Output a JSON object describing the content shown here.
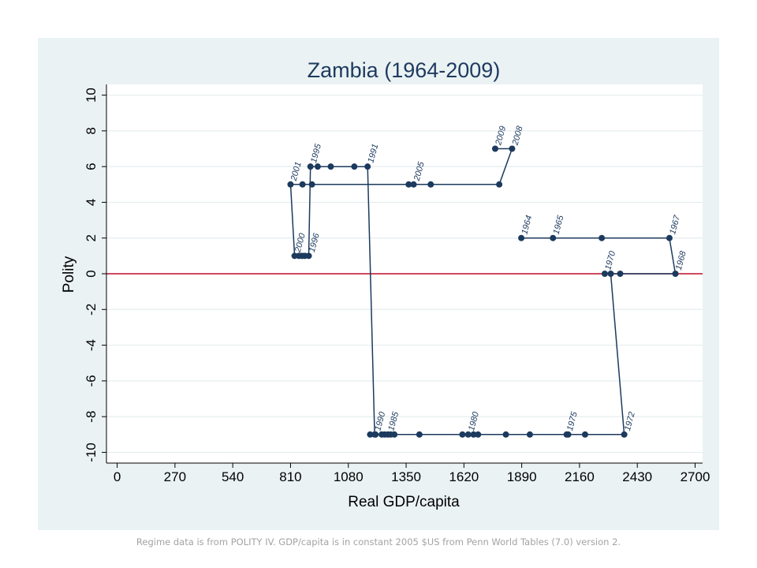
{
  "chart_data": {
    "type": "line",
    "title": "Zambia (1964-2009)",
    "xlabel": "Real GDP/capita",
    "ylabel": "Polity",
    "xlim": [
      -50,
      2735
    ],
    "ylim": [
      -10.6,
      10.6
    ],
    "x_ticks": [
      0,
      270,
      540,
      810,
      1080,
      1350,
      1620,
      1890,
      2160,
      2430,
      2700
    ],
    "y_ticks": [
      -10,
      -8,
      -6,
      -4,
      -2,
      0,
      2,
      4,
      6,
      8,
      10
    ],
    "y_tick_labels": [
      "-10",
      "-8",
      "-6",
      "-4",
      "-2",
      "0",
      "2",
      "4",
      "6",
      "8",
      "10"
    ],
    "reference_line": {
      "y": 0,
      "color": "#c0102a"
    },
    "series_color": "#1c3a5e",
    "series": [
      {
        "name": "Zambia",
        "points": [
          {
            "year": 1964,
            "x": 1888,
            "y": 2,
            "label": "1964"
          },
          {
            "year": 1965,
            "x": 2036,
            "y": 2,
            "label": "1965"
          },
          {
            "year": 1966,
            "x": 2264,
            "y": 2,
            "label": ""
          },
          {
            "year": 1967,
            "x": 2580,
            "y": 2,
            "label": "1967"
          },
          {
            "year": 1968,
            "x": 2608,
            "y": 0,
            "label": "1968"
          },
          {
            "year": 1969,
            "x": 2350,
            "y": 0,
            "label": ""
          },
          {
            "year": 1970,
            "x": 2278,
            "y": 0,
            "label": "1970"
          },
          {
            "year": 1971,
            "x": 2306,
            "y": 0,
            "label": ""
          },
          {
            "year": 1972,
            "x": 2369,
            "y": -9,
            "label": "1972"
          },
          {
            "year": 1973,
            "x": 2186,
            "y": -9,
            "label": ""
          },
          {
            "year": 1974,
            "x": 2107,
            "y": -9,
            "label": ""
          },
          {
            "year": 1975,
            "x": 2100,
            "y": -9,
            "label": "1975"
          },
          {
            "year": 1976,
            "x": 1928,
            "y": -9,
            "label": ""
          },
          {
            "year": 1977,
            "x": 1816,
            "y": -9,
            "label": ""
          },
          {
            "year": 1978,
            "x": 1686,
            "y": -9,
            "label": ""
          },
          {
            "year": 1979,
            "x": 1665,
            "y": -9,
            "label": ""
          },
          {
            "year": 1980,
            "x": 1640,
            "y": -9,
            "label": "1980"
          },
          {
            "year": 1981,
            "x": 1613,
            "y": -9,
            "label": ""
          },
          {
            "year": 1982,
            "x": 1412,
            "y": -9,
            "label": ""
          },
          {
            "year": 1983,
            "x": 1295,
            "y": -9,
            "label": ""
          },
          {
            "year": 1984,
            "x": 1278,
            "y": -9,
            "label": ""
          },
          {
            "year": 1985,
            "x": 1265,
            "y": -9,
            "label": "1985"
          },
          {
            "year": 1986,
            "x": 1250,
            "y": -9,
            "label": ""
          },
          {
            "year": 1987,
            "x": 1236,
            "y": -9,
            "label": ""
          },
          {
            "year": 1988,
            "x": 1207,
            "y": -9,
            "label": ""
          },
          {
            "year": 1989,
            "x": 1182,
            "y": -9,
            "label": ""
          },
          {
            "year": 1990,
            "x": 1203,
            "y": -9,
            "label": "1990"
          },
          {
            "year": 1991,
            "x": 1170,
            "y": 6,
            "label": "1991"
          },
          {
            "year": 1992,
            "x": 1108,
            "y": 6,
            "label": ""
          },
          {
            "year": 1993,
            "x": 998,
            "y": 6,
            "label": ""
          },
          {
            "year": 1994,
            "x": 937,
            "y": 6,
            "label": ""
          },
          {
            "year": 1995,
            "x": 903,
            "y": 6,
            "label": "1995"
          },
          {
            "year": 1996,
            "x": 895,
            "y": 1,
            "label": "1996"
          },
          {
            "year": 1997,
            "x": 877,
            "y": 1,
            "label": ""
          },
          {
            "year": 1998,
            "x": 864,
            "y": 1,
            "label": ""
          },
          {
            "year": 1999,
            "x": 849,
            "y": 1,
            "label": ""
          },
          {
            "year": 2000,
            "x": 829,
            "y": 1,
            "label": "2000"
          },
          {
            "year": 2001,
            "x": 810,
            "y": 5,
            "label": "2001"
          },
          {
            "year": 2002,
            "x": 866,
            "y": 5,
            "label": ""
          },
          {
            "year": 2003,
            "x": 910,
            "y": 5,
            "label": ""
          },
          {
            "year": 2004,
            "x": 1362,
            "y": 5,
            "label": ""
          },
          {
            "year": 2005,
            "x": 1385,
            "y": 5,
            "label": "2005"
          },
          {
            "year": 2006,
            "x": 1465,
            "y": 5,
            "label": ""
          },
          {
            "year": 2007,
            "x": 1785,
            "y": 5,
            "label": ""
          },
          {
            "year": 2008,
            "x": 1845,
            "y": 7,
            "label": "2008"
          },
          {
            "year": 2009,
            "x": 1766,
            "y": 7,
            "label": "2009"
          }
        ]
      }
    ]
  },
  "footnote": "Regime data is from POLITY IV.  GDP/capita is in constant 2005 $US from Penn World Tables (7.0) version 2."
}
